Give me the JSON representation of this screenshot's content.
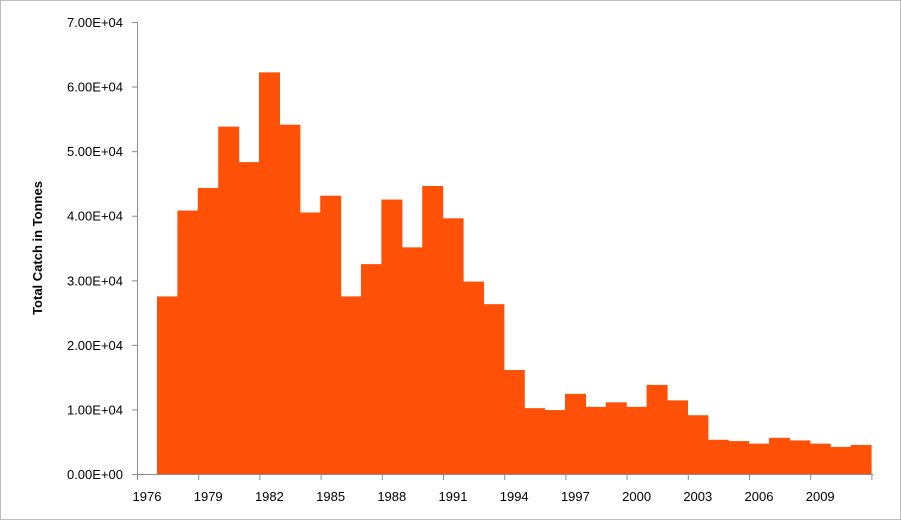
{
  "chart_data": {
    "type": "bar",
    "title": "",
    "xlabel": "",
    "ylabel": "Total Catch in Tonnes",
    "bar_color": "#ff5008",
    "grid": false,
    "legend": "none",
    "ylim": [
      0,
      70000
    ],
    "y_ticks": [
      "0.00E+00",
      "1.00E+04",
      "2.00E+04",
      "3.00E+04",
      "4.00E+04",
      "5.00E+04",
      "6.00E+04",
      "7.00E+04"
    ],
    "x_tick_labels": [
      "1976",
      "1979",
      "1982",
      "1985",
      "1988",
      "1991",
      "1994",
      "1997",
      "2000",
      "2003",
      "2006",
      "2009"
    ],
    "categories": [
      1976,
      1977,
      1978,
      1979,
      1980,
      1981,
      1982,
      1983,
      1984,
      1985,
      1986,
      1987,
      1988,
      1989,
      1990,
      1991,
      1992,
      1993,
      1994,
      1995,
      1996,
      1997,
      1998,
      1999,
      2000,
      2001,
      2002,
      2003,
      2004,
      2005,
      2006,
      2007,
      2008,
      2009,
      2010,
      2011
    ],
    "values": [
      27500,
      40800,
      44300,
      53800,
      48300,
      62200,
      54100,
      40500,
      43100,
      27500,
      32500,
      42500,
      35100,
      44600,
      39600,
      29800,
      26300,
      16100,
      10200,
      9900,
      12400,
      10400,
      11100,
      10400,
      13800,
      11400,
      9100,
      5300,
      5100,
      4700,
      5600,
      5200,
      4700,
      4200,
      4500,
      0
    ]
  }
}
